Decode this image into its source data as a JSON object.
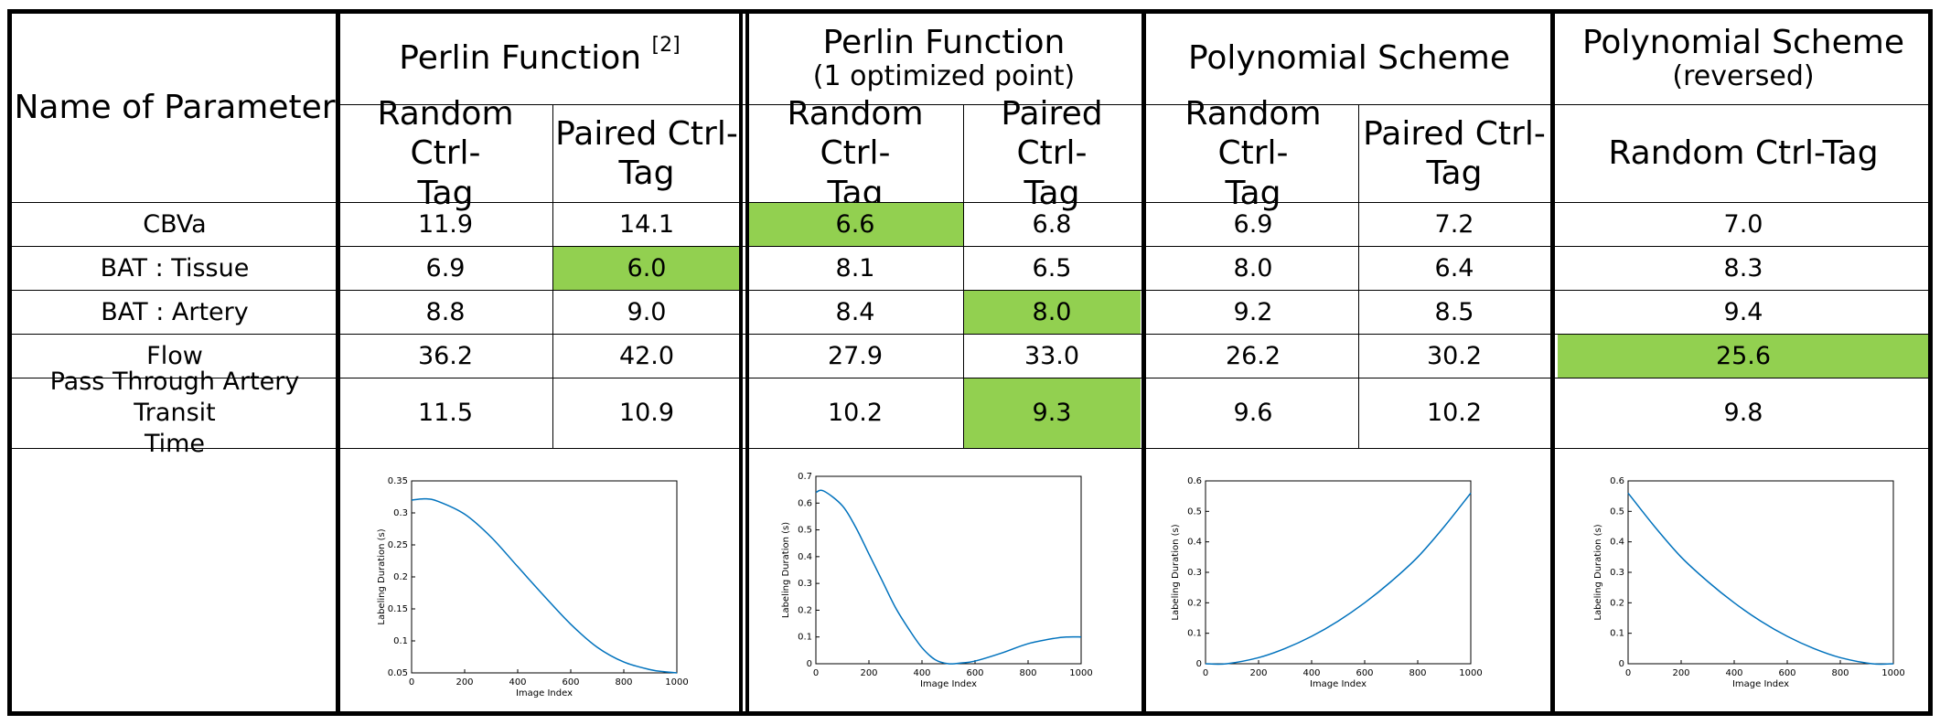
{
  "header": {
    "param_col": "Name of Parameter",
    "groups": [
      {
        "title": "Perlin Function",
        "ref": "[2]",
        "subtitle": ""
      },
      {
        "title": "Perlin Function",
        "ref": "",
        "subtitle": "(1 optimized point)"
      },
      {
        "title": "Polynomial Scheme",
        "ref": "",
        "subtitle": ""
      },
      {
        "title": "Polynomial Scheme",
        "ref": "",
        "subtitle": "(reversed)"
      }
    ],
    "subcols": {
      "random": "Random Ctrl-\nTag",
      "paired": "Paired Ctrl-\nTag",
      "random_single": "Random Ctrl-Tag"
    }
  },
  "rows": [
    {
      "name": "CBVa",
      "values": [
        "11.9",
        "14.1",
        "6.6",
        "6.8",
        "6.9",
        "7.2",
        "7.0"
      ],
      "highlight": [
        2
      ]
    },
    {
      "name": "BAT : Tissue",
      "values": [
        "6.9",
        "6.0",
        "8.1",
        "6.5",
        "8.0",
        "6.4",
        "8.3"
      ],
      "highlight": [
        1
      ]
    },
    {
      "name": "BAT : Artery",
      "values": [
        "8.8",
        "9.0",
        "8.4",
        "8.0",
        "9.2",
        "8.5",
        "9.4"
      ],
      "highlight": [
        3
      ]
    },
    {
      "name": "Flow",
      "values": [
        "36.2",
        "42.0",
        "27.9",
        "33.0",
        "26.2",
        "30.2",
        "25.6"
      ],
      "highlight": [
        6
      ]
    },
    {
      "name": "Pass Through Artery Transit\nTime",
      "values": [
        "11.5",
        "10.9",
        "10.2",
        "9.3",
        "9.6",
        "10.2",
        "9.8"
      ],
      "highlight": [
        3
      ]
    }
  ],
  "highlight_color": "#92d050",
  "chart_data": [
    {
      "type": "line",
      "name": "perlin",
      "xlabel": "Image Index",
      "ylabel": "Labeling Duration (s)",
      "xlim": [
        0,
        1000
      ],
      "ylim": [
        0.05,
        0.35
      ],
      "xticks": [
        "0",
        "200",
        "400",
        "600",
        "800",
        "1000"
      ],
      "yticks": [
        "0.05",
        "0.1",
        "0.15",
        "0.2",
        "0.25",
        "0.3",
        "0.35"
      ],
      "x": [
        0,
        50,
        100,
        200,
        300,
        400,
        500,
        600,
        700,
        800,
        900,
        950,
        1000
      ],
      "y": [
        0.32,
        0.322,
        0.318,
        0.298,
        0.262,
        0.216,
        0.17,
        0.126,
        0.09,
        0.067,
        0.055,
        0.052,
        0.05
      ]
    },
    {
      "type": "line",
      "name": "perlin-opt",
      "xlabel": "Image Index",
      "ylabel": "Labeling Duration (s)",
      "xlim": [
        0,
        1000
      ],
      "ylim": [
        0,
        0.7
      ],
      "xticks": [
        "0",
        "200",
        "400",
        "600",
        "800",
        "1000"
      ],
      "yticks": [
        "0",
        "0.1",
        "0.2",
        "0.3",
        "0.4",
        "0.5",
        "0.6",
        "0.7"
      ],
      "x": [
        0,
        30,
        100,
        150,
        200,
        250,
        300,
        350,
        400,
        450,
        500,
        550,
        600,
        700,
        800,
        900,
        950,
        1000
      ],
      "y": [
        0.64,
        0.645,
        0.59,
        0.51,
        0.41,
        0.31,
        0.21,
        0.13,
        0.06,
        0.015,
        0.0,
        0.003,
        0.01,
        0.04,
        0.075,
        0.095,
        0.1,
        0.1
      ]
    },
    {
      "type": "line",
      "name": "poly",
      "xlabel": "Image Index",
      "ylabel": "Labeling Duration (s)",
      "xlim": [
        0,
        1000
      ],
      "ylim": [
        0,
        0.6
      ],
      "xticks": [
        "0",
        "200",
        "400",
        "600",
        "800",
        "1000"
      ],
      "yticks": [
        "0",
        "0.1",
        "0.2",
        "0.3",
        "0.4",
        "0.5",
        "0.6"
      ],
      "x": [
        0,
        80,
        200,
        300,
        400,
        500,
        600,
        700,
        800,
        900,
        1000
      ],
      "y": [
        0.0,
        0.0,
        0.02,
        0.05,
        0.09,
        0.14,
        0.2,
        0.27,
        0.35,
        0.45,
        0.56
      ]
    },
    {
      "type": "line",
      "name": "poly-rev",
      "xlabel": "Image Index",
      "ylabel": "Labeling Duration (s)",
      "xlim": [
        0,
        1000
      ],
      "ylim": [
        0,
        0.6
      ],
      "xticks": [
        "0",
        "200",
        "400",
        "600",
        "800",
        "1000"
      ],
      "yticks": [
        "0",
        "0.1",
        "0.2",
        "0.3",
        "0.4",
        "0.5",
        "0.6"
      ],
      "x": [
        0,
        100,
        200,
        300,
        400,
        500,
        600,
        700,
        800,
        920,
        1000
      ],
      "y": [
        0.56,
        0.45,
        0.35,
        0.27,
        0.2,
        0.14,
        0.09,
        0.05,
        0.02,
        0.0,
        0.0
      ]
    }
  ]
}
